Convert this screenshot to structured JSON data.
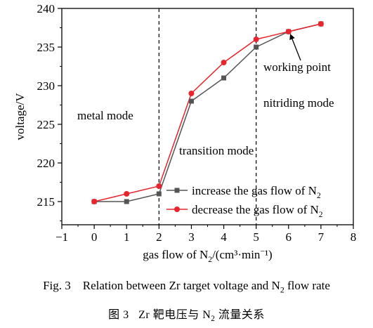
{
  "chart_data": {
    "type": "line",
    "xlabel": "gas flow of N₂/(cm³·min⁻¹)",
    "ylabel": "voltage/V",
    "xlim": [
      -1,
      8
    ],
    "ylim": [
      212,
      240
    ],
    "xticks": [
      -1,
      0,
      1,
      2,
      3,
      4,
      5,
      6,
      7,
      8
    ],
    "yticks": [
      215,
      220,
      225,
      230,
      235,
      240
    ],
    "xtick_labels": [
      "−1",
      "0",
      "1",
      "2",
      "3",
      "4",
      "5",
      "6",
      "7",
      "8"
    ],
    "ytick_labels": [
      "215",
      "220",
      "225",
      "230",
      "235",
      "240"
    ],
    "x": [
      0,
      1,
      2,
      3,
      4,
      5,
      6,
      7
    ],
    "series": [
      {
        "name": "increase the gas flow of N₂",
        "marker": "square",
        "color": "#555555",
        "values": [
          215,
          215,
          216,
          228,
          231,
          235,
          237,
          238
        ]
      },
      {
        "name": "decrease the gas flow of N₂",
        "marker": "circle",
        "color": "#e8242c",
        "values": [
          215,
          216,
          217,
          229,
          233,
          236,
          237,
          238
        ]
      }
    ],
    "vlines": [
      2,
      5
    ],
    "region_labels": [
      "metal mode",
      "transition mode",
      "nitriding mode"
    ],
    "annotation": {
      "text": "working point",
      "x": 6,
      "y": 237
    },
    "legend_position": "bottom-right",
    "grid": false
  },
  "captions": {
    "en_prefix": "Fig. 3",
    "en_text": "Relation between Zr target voltage and N",
    "en_sub": "2",
    "en_suffix": " flow rate",
    "cn_prefix": "图 3",
    "cn_text": "Zr 靶电压与 N",
    "cn_sub": "2",
    "cn_suffix": " 流量关系"
  }
}
